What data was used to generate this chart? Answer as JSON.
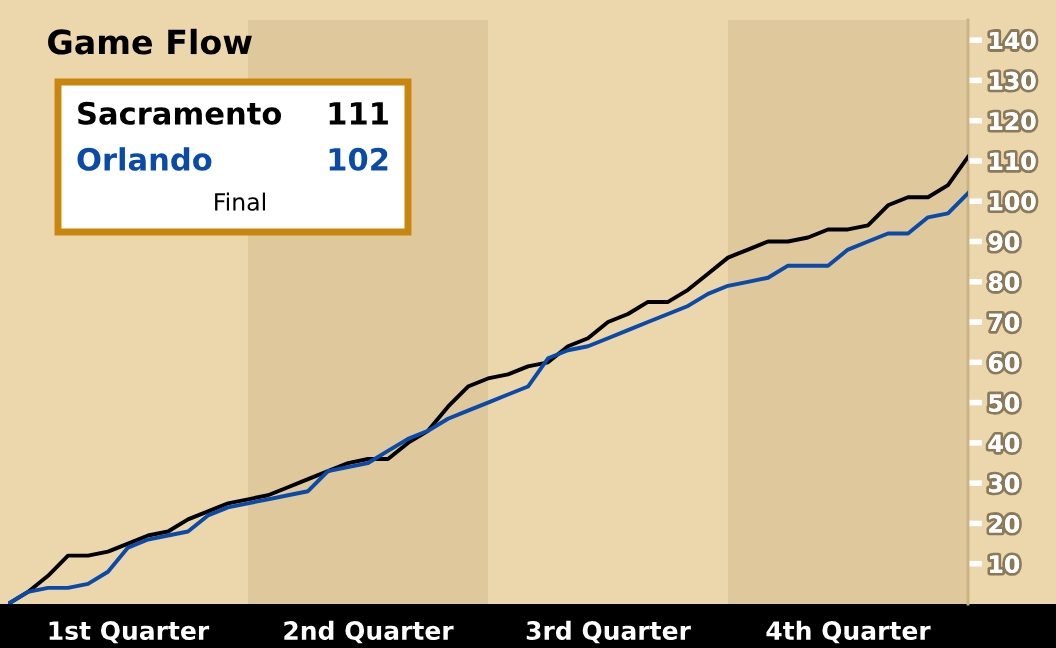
{
  "chart_data": {
    "type": "line",
    "title": "Game Flow",
    "annotations": [
      "111",
      "102",
      "Final"
    ],
    "categories": [
      null,
      null,
      null,
      null,
      null,
      null,
      "1st Quarter",
      null,
      null,
      null,
      null,
      null,
      null,
      null,
      null,
      null,
      null,
      null,
      "2nd Quarter",
      null,
      null,
      null,
      null,
      null,
      null,
      null,
      null,
      null,
      null,
      null,
      "3rd Quarter",
      null,
      null,
      null,
      null,
      null,
      null,
      null,
      null,
      null,
      null,
      null,
      "4th Quarter",
      null,
      null,
      null,
      null,
      null,
      null
    ],
    "ylim": [
      0,
      145
    ],
    "yticks": [
      10,
      20,
      30,
      40,
      50,
      60,
      70,
      80,
      90,
      100,
      110,
      120,
      130,
      140
    ],
    "grid": false,
    "legend": false,
    "marker": "none",
    "line_style": "solid",
    "series": [
      {
        "name": "Sacramento",
        "color": "#000000",
        "values": [
          0,
          3,
          7,
          12,
          12,
          13,
          15,
          17,
          18,
          21,
          23,
          25,
          26,
          27,
          29,
          31,
          33,
          35,
          36,
          36,
          40,
          43,
          49,
          54,
          56,
          57,
          59,
          60,
          64,
          66,
          70,
          72,
          75,
          75,
          78,
          82,
          86,
          88,
          90,
          90,
          91,
          93,
          93,
          94,
          99,
          101,
          101,
          104,
          111
        ]
      },
      {
        "name": "Orlando",
        "color": "#0a4aa8",
        "values": [
          0,
          3,
          4,
          4,
          5,
          8,
          14,
          16,
          17,
          18,
          22,
          24,
          25,
          26,
          27,
          28,
          33,
          34,
          35,
          38,
          41,
          43,
          46,
          48,
          50,
          52,
          54,
          61,
          63,
          64,
          66,
          68,
          70,
          72,
          74,
          77,
          79,
          80,
          81,
          84,
          84,
          84,
          88,
          90,
          92,
          92,
          96,
          97,
          102
        ]
      }
    ]
  }
}
